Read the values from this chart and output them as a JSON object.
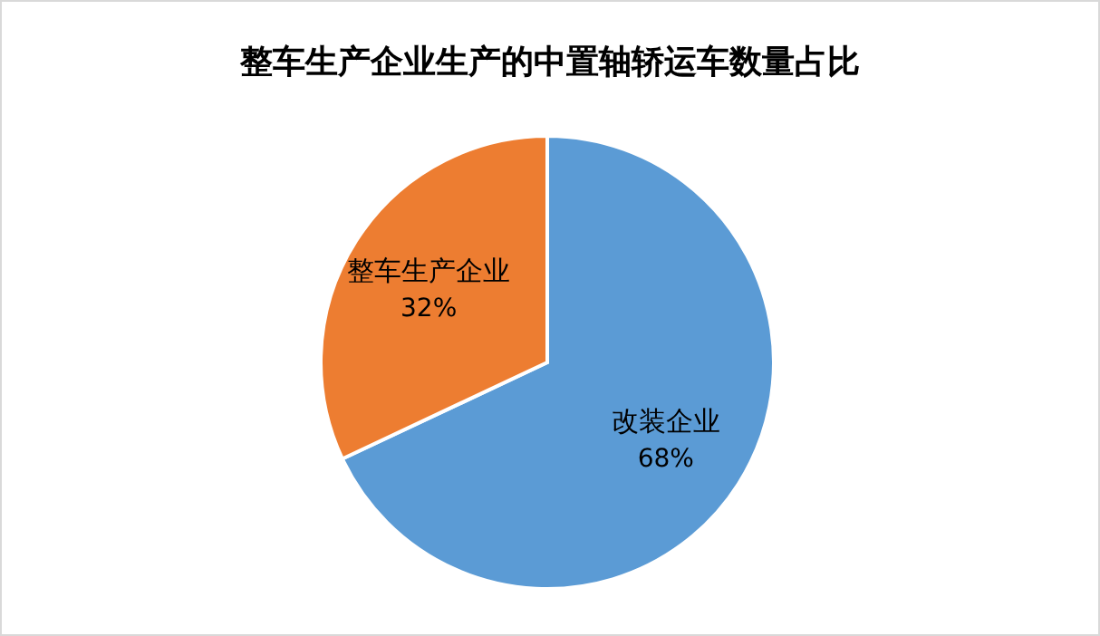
{
  "chart_data": {
    "type": "pie",
    "title": "整车生产企业生产的中置轴轿运车数量占比",
    "categories": [
      "改装企业",
      "整车生产企业"
    ],
    "values": [
      68,
      32
    ],
    "colors": [
      "#5b9bd5",
      "#ed7d31"
    ],
    "value_labels": [
      "68%",
      "32%"
    ]
  }
}
